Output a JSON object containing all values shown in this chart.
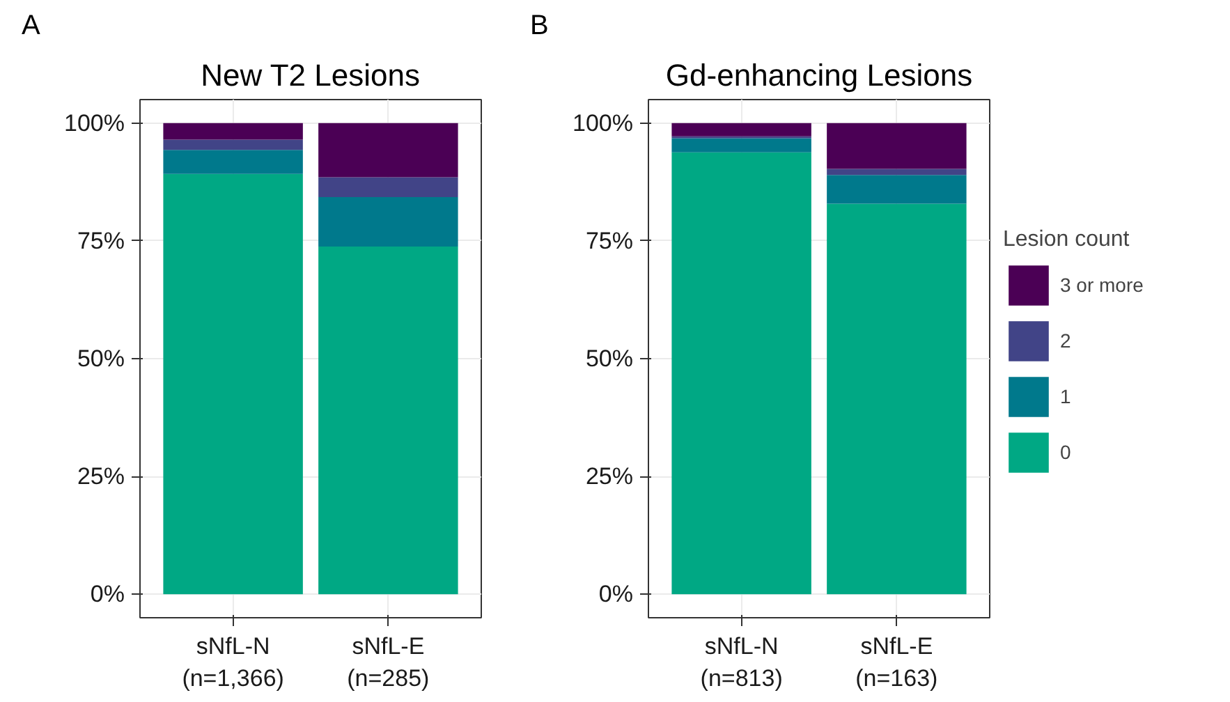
{
  "chart_data": [
    {
      "type": "bar",
      "stacked": true,
      "title": "New T2 Lesions",
      "annotations": [
        "A"
      ],
      "categories": [
        "sNfL-N\n(n=1,366)",
        "sNfL-E\n(n=285)"
      ],
      "series": [
        {
          "color": "#00a884",
          "values": [
            89.2,
            73.8
          ]
        },
        {
          "color": "#00798c",
          "values": [
            5.1,
            10.5
          ]
        },
        {
          "color": "#414487",
          "values": [
            2.2,
            4.2
          ]
        },
        {
          "color": "#4b0055",
          "values": [
            3.5,
            11.5
          ]
        }
      ],
      "ylim": [
        -5,
        105
      ],
      "yticks": [
        {
          "value": 0,
          "label": "0%"
        },
        {
          "value": 25,
          "label": "25%"
        },
        {
          "value": 50,
          "label": "50%"
        },
        {
          "value": 75,
          "label": "75%"
        },
        {
          "value": 100,
          "label": "100%"
        }
      ],
      "grid": true,
      "legend": false
    },
    {
      "type": "bar",
      "stacked": true,
      "title": "Gd-enhancing Lesions",
      "annotations": [
        "B"
      ],
      "legend_title": "Lesion count",
      "categories": [
        "sNfL-N\n(n=813)",
        "sNfL-E\n(n=163)"
      ],
      "series": [
        {
          "name": "0",
          "color": "#00a884",
          "values": [
            93.8,
            82.9
          ]
        },
        {
          "name": "1",
          "color": "#00798c",
          "values": [
            3.0,
            6.1
          ]
        },
        {
          "name": "2",
          "color": "#414487",
          "values": [
            0.4,
            1.3
          ]
        },
        {
          "name": "3 or more",
          "color": "#4b0055",
          "values": [
            2.8,
            9.7
          ]
        }
      ],
      "ylim": [
        -5,
        105
      ],
      "yticks": [
        {
          "value": 0,
          "label": "0%"
        },
        {
          "value": 25,
          "label": "25%"
        },
        {
          "value": 50,
          "label": "50%"
        },
        {
          "value": 75,
          "label": "75%"
        },
        {
          "value": 100,
          "label": "100%"
        }
      ],
      "grid": true,
      "legend": "right"
    }
  ]
}
